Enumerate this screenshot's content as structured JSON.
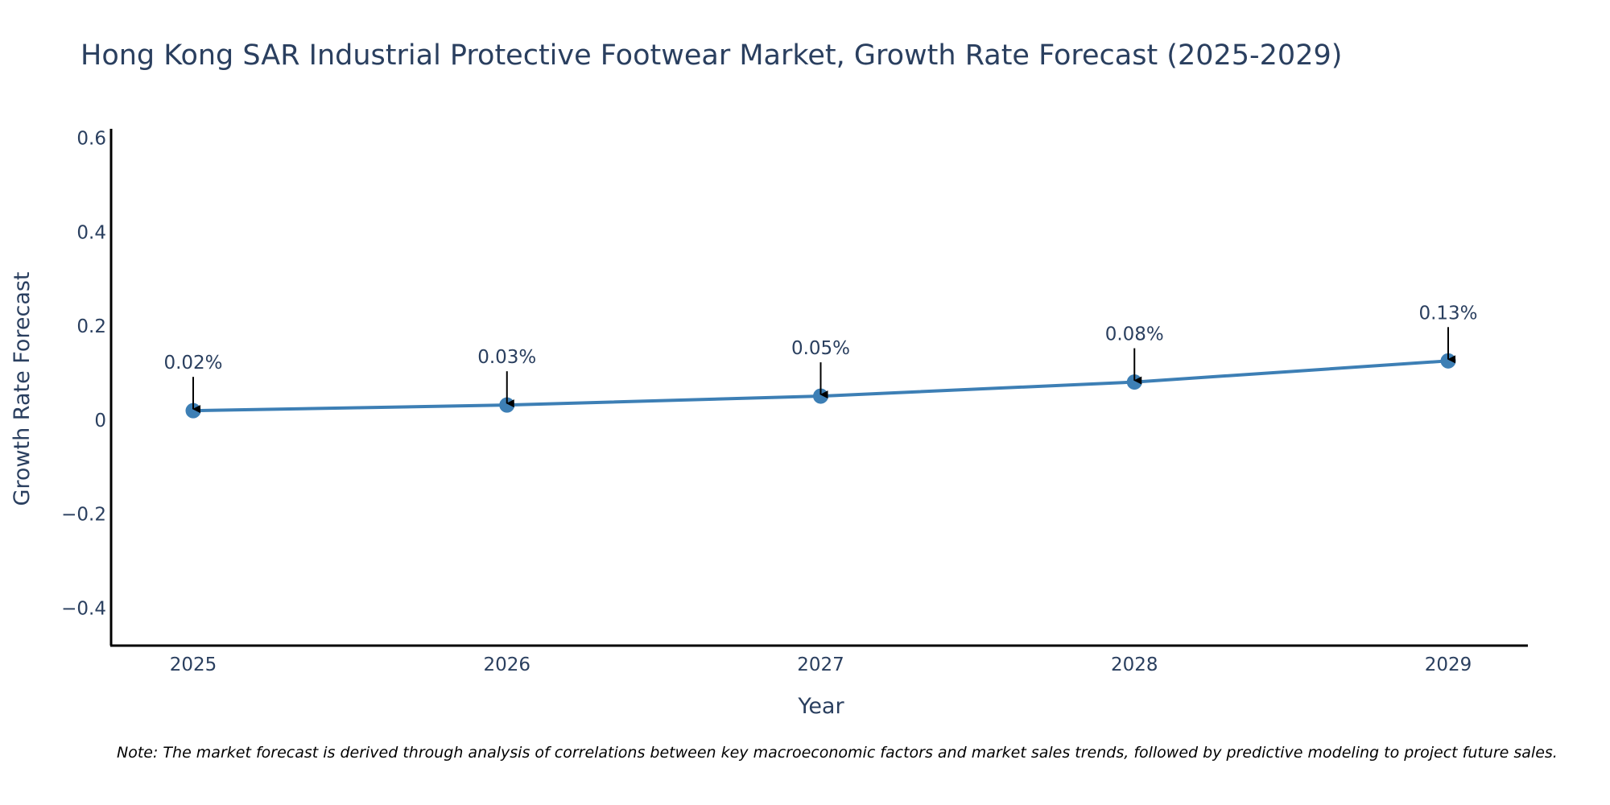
{
  "chart_data": {
    "type": "line",
    "title": "Hong Kong SAR Industrial Protective Footwear Market, Growth Rate Forecast (2025-2029)",
    "xlabel": "Year",
    "ylabel": "Growth Rate Forecast",
    "categories": [
      "2025",
      "2026",
      "2027",
      "2028",
      "2029"
    ],
    "series": [
      {
        "name": "Growth Rate Forecast",
        "values": [
          0.02,
          0.032,
          0.051,
          0.081,
          0.126
        ],
        "labels": [
          "0.02%",
          "0.03%",
          "0.05%",
          "0.08%",
          "0.13%"
        ]
      }
    ],
    "ylim": [
      -0.48,
      0.62
    ],
    "yticks": [
      -0.4,
      -0.2,
      0,
      0.2,
      0.4,
      0.6
    ],
    "ytick_labels": [
      "−0.4",
      "−0.2",
      "0",
      "0.2",
      "0.4",
      "0.6"
    ],
    "grid": false,
    "legend": "none",
    "colors": {
      "line": "#3d7fb5",
      "marker": "#3d7fb5",
      "axis": "#000000",
      "text": "#2a3f5f",
      "arrow": "#000000"
    },
    "note": "Note: The market forecast is derived through analysis of correlations between key macroeconomic factors and market sales trends, followed by predictive modeling to project future sales."
  }
}
